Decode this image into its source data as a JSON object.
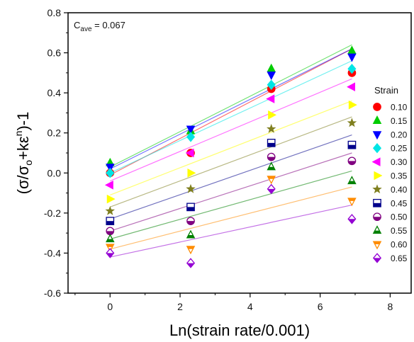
{
  "chart_data": {
    "type": "scatter",
    "title": "",
    "annotation": {
      "label": "C",
      "subscript": "ave",
      "value_text": " = 0.067"
    },
    "xlabel": "Ln(strain rate/0.001)",
    "ylabel_parts": {
      "open": "(σ/σ",
      "sub": "o",
      "mid": "+kε",
      "sup": "n",
      "close": ")-1"
    },
    "xlim": [
      -1.2,
      8.6
    ],
    "ylim": [
      -0.6,
      0.8
    ],
    "xticks": [
      0,
      2,
      4,
      6,
      8
    ],
    "xtick_labels": [
      "0",
      "2",
      "4",
      "6",
      "8"
    ],
    "yticks": [
      -0.6,
      -0.4,
      -0.2,
      0.0,
      0.2,
      0.4,
      0.6,
      0.8
    ],
    "ytick_labels": [
      "-0.6",
      "-0.4",
      "-0.2",
      "0.0",
      "0.2",
      "0.4",
      "0.6",
      "0.8"
    ],
    "grid": false,
    "legend_title": "Strain",
    "legend_position": "right",
    "x": [
      0,
      2.303,
      4.605,
      6.908
    ],
    "series": [
      {
        "name": "0.10",
        "color": "#ff0000",
        "marker": "circle",
        "filled": true,
        "values": [
          0.0,
          0.1,
          0.42,
          0.5
        ],
        "fit": [
          -0.01,
          0.62
        ]
      },
      {
        "name": "0.15",
        "color": "#00cc00",
        "marker": "triangle-up",
        "filled": true,
        "values": [
          0.05,
          0.21,
          0.52,
          0.61
        ],
        "fit": [
          0.03,
          0.64
        ]
      },
      {
        "name": "0.20",
        "color": "#0000ff",
        "marker": "triangle-down",
        "filled": true,
        "values": [
          0.03,
          0.22,
          0.49,
          0.58
        ],
        "fit": [
          0.02,
          0.62
        ]
      },
      {
        "name": "0.25",
        "color": "#00e5e5",
        "marker": "diamond",
        "filled": true,
        "values": [
          0.0,
          0.18,
          0.44,
          0.52
        ],
        "fit": [
          0.0,
          0.56
        ]
      },
      {
        "name": "0.30",
        "color": "#ff00ff",
        "marker": "triangle-left",
        "filled": true,
        "values": [
          -0.06,
          0.1,
          0.37,
          0.43
        ],
        "fit": [
          -0.04,
          0.47
        ]
      },
      {
        "name": "0.35",
        "color": "#ffff00",
        "marker": "triangle-right",
        "filled": true,
        "values": [
          -0.13,
          0.0,
          0.29,
          0.34
        ],
        "fit": [
          -0.11,
          0.36
        ]
      },
      {
        "name": "0.40",
        "color": "#7f7f1f",
        "marker": "star",
        "filled": true,
        "values": [
          -0.19,
          -0.08,
          0.22,
          0.25
        ],
        "fit": [
          -0.17,
          0.28
        ]
      },
      {
        "name": "0.45",
        "color": "#00008b",
        "marker": "square-half",
        "filled": false,
        "values": [
          -0.24,
          -0.17,
          0.15,
          0.14
        ],
        "fit": [
          -0.23,
          0.19
        ]
      },
      {
        "name": "0.50",
        "color": "#800080",
        "marker": "circle-half",
        "filled": false,
        "values": [
          -0.29,
          -0.24,
          0.08,
          0.06
        ],
        "fit": [
          -0.29,
          0.1
        ]
      },
      {
        "name": "0.55",
        "color": "#008000",
        "marker": "triangle-up-half",
        "filled": false,
        "values": [
          -0.33,
          -0.31,
          0.03,
          -0.04
        ],
        "fit": [
          -0.33,
          0.01
        ]
      },
      {
        "name": "0.60",
        "color": "#ff8c00",
        "marker": "triangle-down-half",
        "filled": false,
        "values": [
          -0.37,
          -0.38,
          -0.03,
          -0.14
        ],
        "fit": [
          -0.38,
          -0.07
        ]
      },
      {
        "name": "0.65",
        "color": "#9400d3",
        "marker": "diamond-half",
        "filled": false,
        "values": [
          -0.4,
          -0.45,
          -0.08,
          -0.23
        ],
        "fit": [
          -0.42,
          -0.16
        ]
      }
    ]
  }
}
